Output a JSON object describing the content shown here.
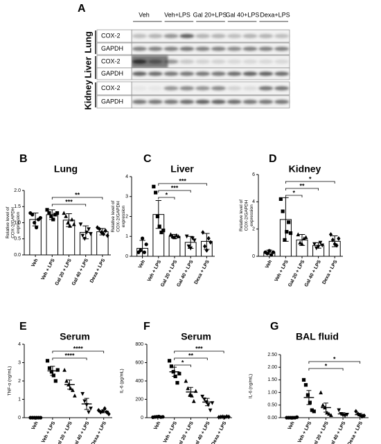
{
  "blot": {
    "panel": "A",
    "lanes": [
      "Veh",
      "Veh+LPS",
      "Gal 20+LPS",
      "Gal 40+LPS",
      "Dexa+LPS"
    ],
    "organs": [
      {
        "name": "Lung",
        "bands": [
          "COX-2",
          "GAPDH"
        ]
      },
      {
        "name": "Liver",
        "bands": [
          "COX-2",
          "GAPDH"
        ]
      },
      {
        "name": "Kidney",
        "bands": [
          "COX-2",
          "GAPDH"
        ]
      }
    ]
  },
  "chart_data": [
    {
      "type": "bar",
      "panel": "B",
      "title": "Lung",
      "ylabel": [
        "Relative level of",
        "COX-2/GAPDH",
        "expression"
      ],
      "categories": [
        "Veh",
        "Veh + LPS",
        "Gal 20 + LPS",
        "Gal 40 + LPS",
        "Dexa + LPS"
      ],
      "values": [
        1.1,
        1.25,
        1.08,
        0.7,
        0.72
      ],
      "errors": [
        0.2,
        0.15,
        0.2,
        0.2,
        0.1
      ],
      "points": [
        [
          1.3,
          1.25,
          1.0,
          0.85,
          1.1,
          1.15
        ],
        [
          1.4,
          1.3,
          1.2,
          1.1,
          1.25,
          1.3
        ],
        [
          1.3,
          1.2,
          1.0,
          0.9,
          1.1,
          0.95
        ],
        [
          0.95,
          0.6,
          0.5,
          0.7,
          0.8,
          0.65
        ],
        [
          0.85,
          0.8,
          0.7,
          0.65,
          0.75,
          0.6
        ]
      ],
      "ylim": [
        0,
        2
      ],
      "yticks": [
        {
          "value": 0,
          "label": "0.0"
        },
        0.5,
        {
          "value": 1,
          "label": "1.0"
        },
        1.5,
        {
          "value": 2,
          "label": "2.0"
        }
      ],
      "annotations": [
        {
          "text": "***",
          "between": [
            1,
            3
          ]
        },
        {
          "text": "**",
          "between": [
            1,
            4
          ]
        }
      ],
      "color": "#000000"
    },
    {
      "type": "bar",
      "panel": "C",
      "title": "Liver",
      "ylabel": [
        "Relative level of",
        "COX-2/GAPDH",
        "expression"
      ],
      "categories": [
        "Veh",
        "Veh + LPS",
        "Gal 20 + LPS",
        "Gal 40 + LPS",
        "Dexa + LPS"
      ],
      "values": [
        0.4,
        2.1,
        1.0,
        0.7,
        0.75
      ],
      "errors": [
        0.4,
        0.7,
        0.1,
        0.3,
        0.4
      ],
      "points": [
        [
          0.2,
          0.3,
          0.9,
          0.2,
          0.6
        ],
        [
          3.5,
          3.2,
          2.0,
          1.5,
          1.2,
          1.3
        ],
        [
          1.1,
          1.0,
          0.95,
          1.05,
          1.0
        ],
        [
          1.0,
          0.5,
          0.4,
          0.9,
          0.8
        ],
        [
          1.2,
          0.5,
          0.3,
          0.9,
          0.7
        ]
      ],
      "ylim": [
        0,
        4
      ],
      "yticks": [
        0,
        1,
        2,
        3,
        4
      ],
      "annotations": [
        {
          "text": "*",
          "between": [
            1,
            2
          ]
        },
        {
          "text": "***",
          "between": [
            1,
            3
          ]
        },
        {
          "text": "***",
          "between": [
            1,
            4
          ]
        }
      ],
      "color": "#000000"
    },
    {
      "type": "bar",
      "panel": "D",
      "title": "Kidney",
      "ylabel": [
        "Relative level of",
        "COX-2/GAPDH",
        "expression"
      ],
      "categories": [
        "Veh",
        "Veh + LPS",
        "Gal 20 + LPS",
        "Gal 40 + LPS",
        "Dexa + LPS"
      ],
      "values": [
        0.3,
        2.7,
        1.2,
        0.8,
        1.1
      ],
      "errors": [
        0.15,
        1.6,
        0.4,
        0.2,
        0.4
      ],
      "points": [
        [
          0.3,
          0.2,
          0.4,
          0.1,
          0.3
        ],
        [
          4.2,
          3.3,
          1.2,
          1.8,
          2.5,
          1.7
        ],
        [
          1.6,
          1.0,
          0.9,
          1.3,
          1.4
        ],
        [
          0.9,
          0.6,
          0.7,
          1.0,
          0.8
        ],
        [
          1.6,
          1.2,
          0.9,
          0.8,
          1.3
        ]
      ],
      "ylim": [
        0,
        6
      ],
      "yticks": [
        0,
        2,
        4,
        6
      ],
      "annotations": [
        {
          "text": "*",
          "between": [
            1,
            2
          ]
        },
        {
          "text": "**",
          "between": [
            1,
            3
          ]
        },
        {
          "text": "*",
          "between": [
            1,
            4
          ]
        }
      ],
      "color": "#000000"
    },
    {
      "type": "dot",
      "panel": "E",
      "title": "Serum",
      "ylabel": [
        "TNF-α (ng/mL)"
      ],
      "categories": [
        "Veh",
        "Veh + LPS",
        "Gal 20 + LPS",
        "Gal 40 + LPS",
        "Dexa + LPS"
      ],
      "values": [
        0,
        2.55,
        1.8,
        0.75,
        0.35
      ],
      "errors": [
        0.02,
        0.25,
        0.25,
        0.3,
        0.08
      ],
      "points": [
        [
          0,
          0,
          0,
          0,
          0,
          0
        ],
        [
          3.1,
          2.7,
          2.5,
          2.3,
          2.0,
          2.6
        ],
        [
          2.6,
          2.0,
          1.8,
          1.6,
          1.5,
          1.2
        ],
        [
          1.3,
          0.9,
          0.7,
          0.3,
          0.5
        ],
        [
          0.4,
          0.3,
          0.35,
          0.5,
          0.3,
          0.2
        ]
      ],
      "ylim": [
        0,
        4
      ],
      "yticks": [
        0,
        1,
        2,
        3,
        4
      ],
      "annotations": [
        {
          "text": "****",
          "between": [
            1,
            3
          ]
        },
        {
          "text": "****",
          "between": [
            1,
            4
          ]
        }
      ],
      "color": "#000000"
    },
    {
      "type": "dot",
      "panel": "F",
      "title": "Serum",
      "ylabel": [
        "IL-6  (pg/mL)"
      ],
      "categories": [
        "Veh",
        "Veh + LPS",
        "Gal 20 + LPS",
        "Gal 40 + LPS",
        "Dexa + LPS"
      ],
      "values": [
        10,
        500,
        280,
        170,
        10
      ],
      "errors": [
        2,
        50,
        50,
        40,
        2
      ],
      "points": [
        [
          5,
          8,
          10,
          12,
          6,
          9
        ],
        [
          620,
          560,
          500,
          450,
          380,
          480
        ],
        [
          400,
          320,
          250,
          240,
          180,
          290
        ],
        [
          230,
          200,
          170,
          140,
          80,
          160
        ],
        [
          5,
          8,
          10,
          6,
          12,
          9
        ]
      ],
      "ylim": [
        0,
        800
      ],
      "yticks": [
        0,
        200,
        400,
        600,
        800
      ],
      "annotations": [
        {
          "text": "*",
          "between": [
            1,
            2
          ]
        },
        {
          "text": "**",
          "between": [
            1,
            3
          ]
        },
        {
          "text": "***",
          "between": [
            1,
            4
          ]
        }
      ],
      "color": "#000000"
    },
    {
      "type": "dot",
      "panel": "G",
      "title": "BAL fluid",
      "ylabel": [
        "IL-6  (ng/mL)"
      ],
      "categories": [
        "Veh",
        "Veh + LPS",
        "Gal 20 + LPS",
        "Gal 40 + LPS",
        "Dexa + LPS"
      ],
      "values": [
        0,
        0.8,
        0.4,
        0.15,
        0.12
      ],
      "errors": [
        0.01,
        0.28,
        0.18,
        0.05,
        0.05
      ],
      "points": [
        [
          0,
          0,
          0,
          0,
          0,
          0.02
        ],
        [
          1.5,
          1.3,
          0.9,
          0.6,
          0.3,
          0.25
        ],
        [
          1.0,
          0.5,
          0.4,
          0.2,
          0.15,
          0.1
        ],
        [
          0.3,
          0.15,
          0.1,
          0.08,
          0.12
        ],
        [
          0.25,
          0.15,
          0.1,
          0.05,
          0.08
        ]
      ],
      "ylim": [
        0,
        2.5
      ],
      "yticks": [
        {
          "value": 0,
          "label": "0.00"
        },
        {
          "value": 0.5,
          "label": "0.50"
        },
        {
          "value": 1,
          "label": "1.00"
        },
        {
          "value": 1.5,
          "label": "1.50"
        },
        {
          "value": 2,
          "label": "2.00"
        },
        {
          "value": 2.5,
          "label": "2.50"
        }
      ],
      "annotations": [
        {
          "text": "*",
          "between": [
            1,
            3
          ]
        },
        {
          "text": "*",
          "between": [
            1,
            4
          ]
        }
      ],
      "color": "#000000"
    }
  ]
}
